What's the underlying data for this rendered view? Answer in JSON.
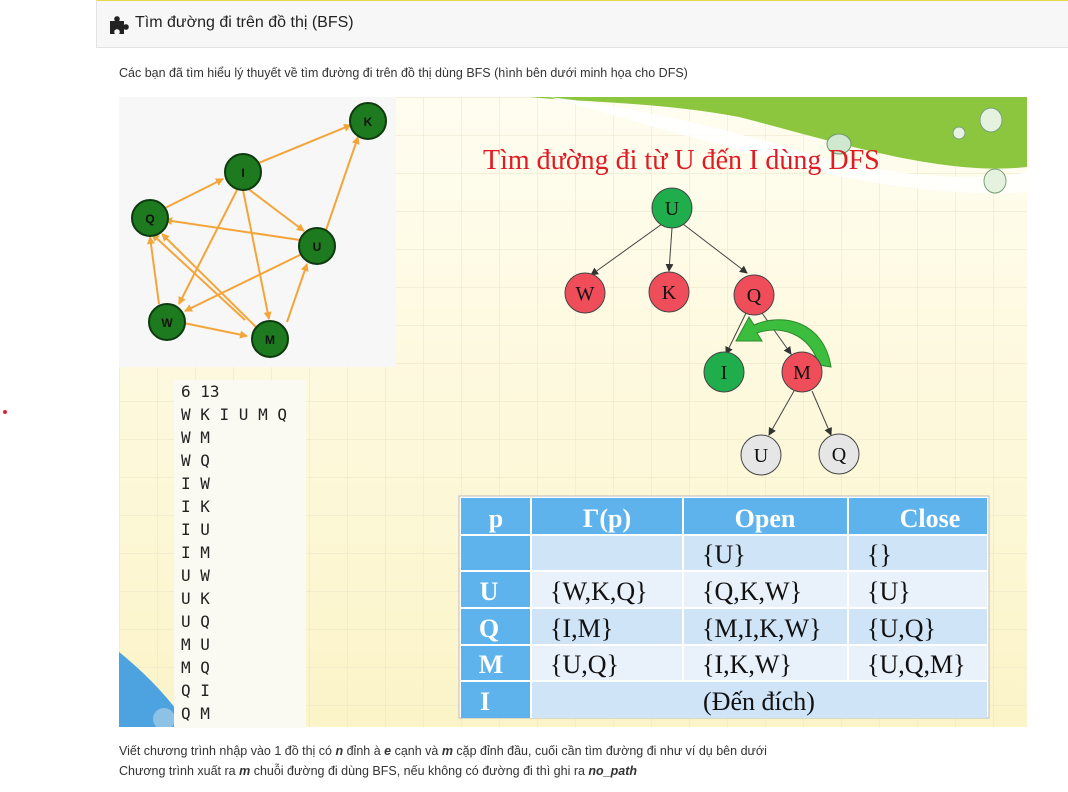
{
  "header": {
    "title": "Tìm đường đi trên đồ thị (BFS)",
    "icon": "puzzle-icon"
  },
  "intro": "Các bạn đã tìm hiểu lý thuyết về tìm đường đi trên đồ thị dùng BFS (hình bên dưới minh họa cho DFS)",
  "graph": {
    "nodes": [
      "K",
      "I",
      "Q",
      "U",
      "W",
      "M"
    ],
    "node_color": "#1e7a1e",
    "edge_color": "#f4a53a"
  },
  "slide": {
    "title": "Tìm đường đi từ U đến I dùng DFS",
    "tree_nodes": {
      "u": "U",
      "w": "W",
      "k": "K",
      "q": "Q",
      "i": "I",
      "m": "M",
      "u2": "U",
      "q2": "Q"
    },
    "colors": {
      "green": "#1fae4b",
      "red": "#f04d5a",
      "gray": "#e6e6e6",
      "table_head": "#5fb3ec"
    },
    "table": {
      "headers": [
        "p",
        "Γ(p)",
        "Open",
        "Close"
      ],
      "rows": [
        [
          "",
          "",
          "{U}",
          "{}"
        ],
        [
          "U",
          "{W,K,Q}",
          "{Q,K,W}",
          "{U}"
        ],
        [
          "Q",
          "{I,M}",
          "{M,I,K,W}",
          "{U,Q}"
        ],
        [
          "M",
          "{U,Q}",
          "{I,K,W}",
          "{U,Q,M}"
        ]
      ],
      "last_row": {
        "p": "I",
        "text": "(Đến đích)"
      }
    }
  },
  "sample_input": [
    "6 13",
    "W K I U M Q",
    "W M",
    "W Q",
    "I W",
    "I K",
    "I U",
    "I M",
    "U W",
    "U K",
    "U Q",
    "M U",
    "M Q",
    "Q I",
    "Q M"
  ],
  "footer": {
    "line1": {
      "a": "Viết chương trình nhập vào 1 đồ thị có ",
      "n": "n",
      "b": " đỉnh à ",
      "e": "e",
      "c": " cạnh và ",
      "m": "m",
      "d": " cặp đỉnh đầu, cuối cần tìm đường đi như ví dụ bên dưới"
    },
    "line2": {
      "a": "Chương trình xuất ra ",
      "m": "m",
      "b": " chuỗi đường đi dùng BFS, nếu không có đường đi thì ghi ra ",
      "no_path": "no_path"
    }
  }
}
